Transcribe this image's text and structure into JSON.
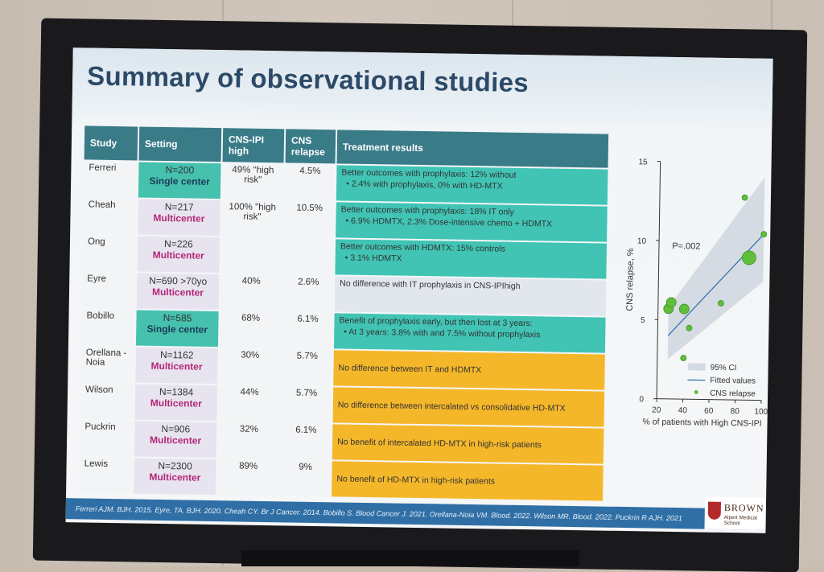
{
  "slide": {
    "title": "Summary of observational studies",
    "footer": "Ferreri AJM. BJH. 2015. Eyre, TA. BJH. 2020. Cheah CY. Br J Cancer. 2014. Bobillo S. Blood Cancer J. 2021. Orellana-Noia VM. Blood. 2022. Wilson MR. Blood. 2022. Puckrin R AJH. 2021",
    "logo": {
      "name": "BROWN",
      "sub": "Alpert Medical School"
    }
  },
  "table": {
    "headers": [
      "Study",
      "Setting",
      "CNS-IPI high",
      "CNS relapse",
      "Treatment results"
    ],
    "rows": [
      {
        "study": "Ferreri",
        "n": "N=200",
        "setting": "Single center",
        "setting_type": "single",
        "cnsipi": "49% \"high risk\"",
        "relapse": "4.5%",
        "result_color": "teal",
        "result_line1": "Better outcomes with prophylaxis: 12% without",
        "result_line2": "•      2.4% with prophylaxis, 0% with HD-MTX"
      },
      {
        "study": "Cheah",
        "n": "N=217",
        "setting": "Multicenter",
        "setting_type": "multi",
        "cnsipi": "100% \"high risk\"",
        "relapse": "10.5%",
        "result_color": "teal",
        "result_line1": "Better outcomes with prophylaxis: 18% IT only",
        "result_line2": "•      6.9% HDMTX,   2.3% Dose-intensive chemo + HDMTX"
      },
      {
        "study": "Ong",
        "n": "N=226",
        "setting": "Multicenter",
        "setting_type": "multi",
        "cnsipi": "",
        "relapse": "",
        "result_color": "teal",
        "result_line1": "Better outcomes with HDMTX: 15% controls",
        "result_line2": "•      3.1% HDMTX"
      },
      {
        "study": "Eyre",
        "n": "N=690 >70yo",
        "setting": "Multicenter",
        "setting_type": "multi",
        "cnsipi": "40%",
        "relapse": "2.6%",
        "result_color": "gray",
        "result_line1": "No difference with IT prophylaxis in CNS-IPIhigh",
        "result_line2": ""
      },
      {
        "study": "Bobillo",
        "n": "N=585",
        "setting": "Single center",
        "setting_type": "single",
        "cnsipi": "68%",
        "relapse": "6.1%",
        "result_color": "teal",
        "result_line1": "Benefit of prophylaxis early, but then lost at 3 years:",
        "result_line2": "•      At 3 years: 3.8% with and 7.5% without prophylaxis"
      },
      {
        "study": "Orellana -Noia",
        "n": "N=1162",
        "setting": "Multicenter",
        "setting_type": "multi",
        "cnsipi": "30%",
        "relapse": "5.7%",
        "result_color": "orange",
        "result_line1": "No difference between IT and HDMTX",
        "result_line2": ""
      },
      {
        "study": "Wilson",
        "n": "N=1384",
        "setting": "Multicenter",
        "setting_type": "multi",
        "cnsipi": "44%",
        "relapse": "5.7%",
        "result_color": "orange",
        "result_line1": "No difference between intercalated vs consolidative HD-MTX",
        "result_line2": ""
      },
      {
        "study": "Puckrin",
        "n": "N=906",
        "setting": "Multicenter",
        "setting_type": "multi",
        "cnsipi": "32%",
        "relapse": "6.1%",
        "result_color": "orange",
        "result_line1": "No benefit of intercalated HD-MTX in high-risk patients",
        "result_line2": ""
      },
      {
        "study": "Lewis",
        "n": "N=2300",
        "setting": "Multicenter",
        "setting_type": "multi",
        "cnsipi": "89%",
        "relapse": "9%",
        "result_color": "orange",
        "result_line1": "No benefit of HD-MTX in high-risk patients",
        "result_line2": ""
      }
    ]
  },
  "chart_data": {
    "type": "scatter",
    "xlabel": "% of patients with High CNS-IPI",
    "ylabel": "CNS relapse, %",
    "xlim": [
      20,
      100
    ],
    "ylim": [
      0,
      15
    ],
    "xticks": [
      "20",
      "40",
      "60",
      "80",
      "100"
    ],
    "yticks": [
      "0",
      "5",
      "10",
      "15"
    ],
    "annotation": "P=.002",
    "legend": [
      "95% CI",
      "Fitted values",
      "CNS relapse"
    ],
    "points": [
      {
        "x": 28,
        "y": 5.7,
        "size": 2
      },
      {
        "x": 30,
        "y": 6.1,
        "size": 2
      },
      {
        "x": 40,
        "y": 5.7,
        "size": 2
      },
      {
        "x": 44,
        "y": 4.5,
        "size": 1
      },
      {
        "x": 40,
        "y": 2.6,
        "size": 1
      },
      {
        "x": 68,
        "y": 6.1,
        "size": 1
      },
      {
        "x": 89,
        "y": 9.0,
        "size": 3
      },
      {
        "x": 100,
        "y": 10.5,
        "size": 1
      },
      {
        "x": 85,
        "y": 12.8,
        "size": 1
      }
    ],
    "fit": [
      [
        28,
        4.0
      ],
      [
        100,
        10.5
      ]
    ]
  },
  "colors": {
    "header": "#3a7b88",
    "teal": "#41c4b4",
    "orange": "#f5b72a",
    "multi_text": "#b32678",
    "footer": "#2f6fa5"
  }
}
